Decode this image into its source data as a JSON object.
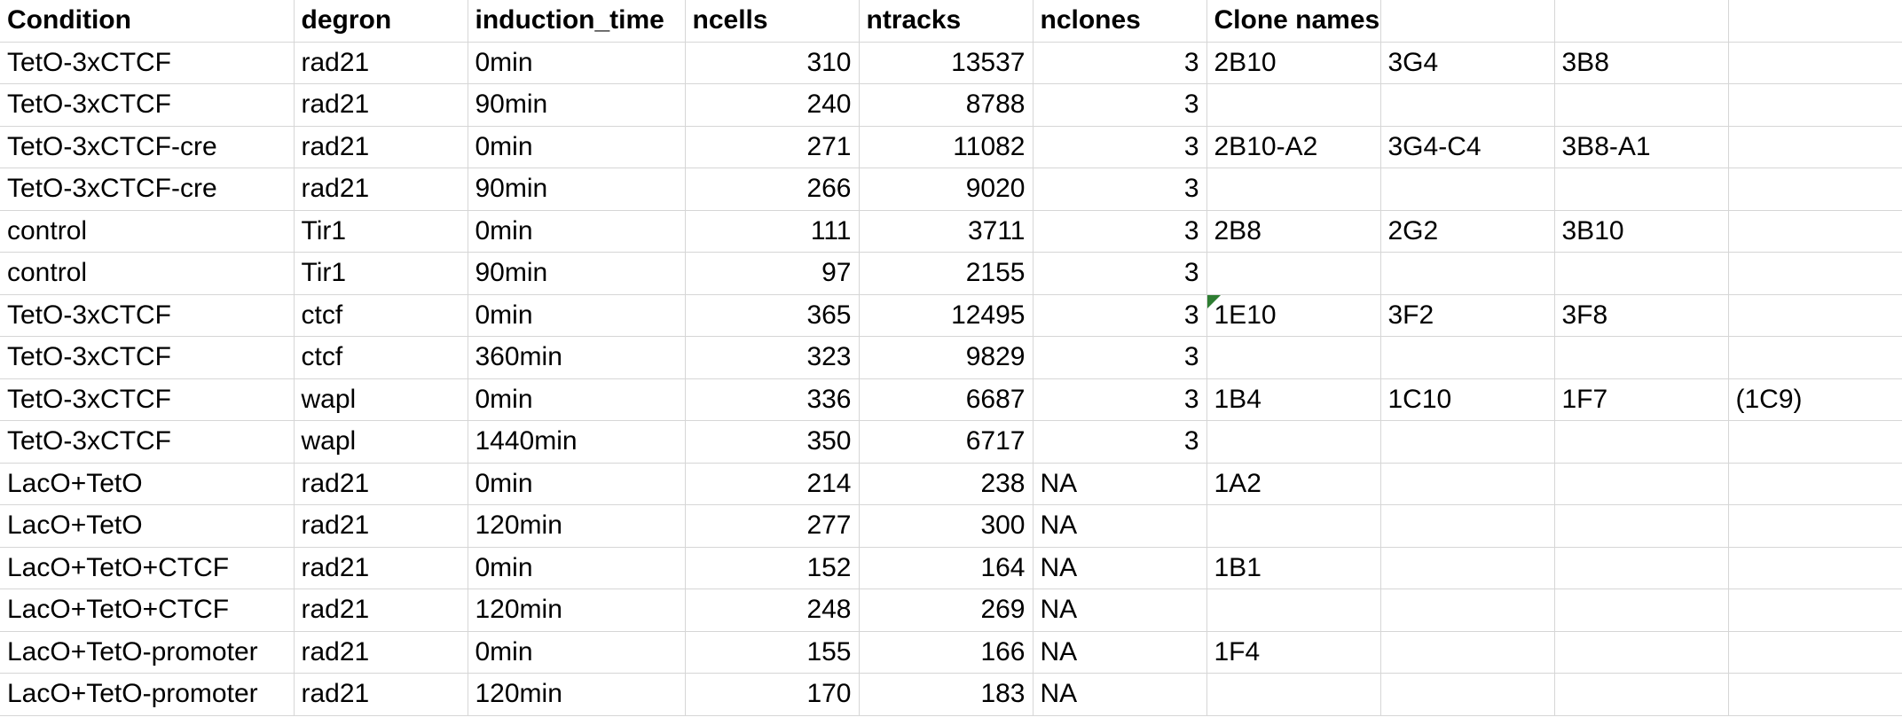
{
  "headers": [
    "Condition",
    "degron",
    "induction_time",
    "ncells",
    "ntracks",
    "nclones",
    "Clone names",
    "",
    "",
    ""
  ],
  "rows": [
    [
      "TetO-3xCTCF",
      "rad21",
      "0min",
      "310",
      "13537",
      "3",
      "2B10",
      "3G4",
      "3B8",
      ""
    ],
    [
      "TetO-3xCTCF",
      "rad21",
      "90min",
      "240",
      "8788",
      "3",
      "",
      "",
      "",
      ""
    ],
    [
      "TetO-3xCTCF-cre",
      "rad21",
      "0min",
      "271",
      "11082",
      "3",
      "2B10-A2",
      "3G4-C4",
      "3B8-A1",
      ""
    ],
    [
      "TetO-3xCTCF-cre",
      "rad21",
      "90min",
      "266",
      "9020",
      "3",
      "",
      "",
      "",
      ""
    ],
    [
      "control",
      "Tir1",
      "0min",
      "111",
      "3711",
      "3",
      "2B8",
      "2G2",
      "3B10",
      ""
    ],
    [
      "control",
      "Tir1",
      "90min",
      "97",
      "2155",
      "3",
      "",
      "",
      "",
      ""
    ],
    [
      "TetO-3xCTCF",
      "ctcf",
      "0min",
      "365",
      "12495",
      "3",
      "1E10",
      "3F2",
      "3F8",
      ""
    ],
    [
      "TetO-3xCTCF",
      "ctcf",
      "360min",
      "323",
      "9829",
      "3",
      "",
      "",
      "",
      ""
    ],
    [
      "TetO-3xCTCF",
      "wapl",
      "0min",
      "336",
      "6687",
      "3",
      "1B4",
      "1C10",
      "1F7",
      "(1C9)"
    ],
    [
      "TetO-3xCTCF",
      "wapl",
      "1440min",
      "350",
      "6717",
      "3",
      "",
      "",
      "",
      ""
    ],
    [
      "LacO+TetO",
      "rad21",
      "0min",
      "214",
      "238",
      "NA",
      "1A2",
      "",
      "",
      ""
    ],
    [
      "LacO+TetO",
      "rad21",
      "120min",
      "277",
      "300",
      "NA",
      "",
      "",
      "",
      ""
    ],
    [
      "LacO+TetO+CTCF",
      "rad21",
      "0min",
      "152",
      "164",
      "NA",
      "1B1",
      "",
      "",
      ""
    ],
    [
      "LacO+TetO+CTCF",
      "rad21",
      "120min",
      "248",
      "269",
      "NA",
      "",
      "",
      "",
      ""
    ],
    [
      "LacO+TetO-promoter",
      "rad21",
      "0min",
      "155",
      "166",
      "NA",
      "1F4",
      "",
      "",
      ""
    ],
    [
      "LacO+TetO-promoter",
      "rad21",
      "120min",
      "170",
      "183",
      "NA",
      "",
      "",
      "",
      ""
    ]
  ],
  "colors": {
    "gridline": "#d6d6d6",
    "selection_border": "#217346",
    "comment_marker": "#2e7d32"
  },
  "comment_indicator_icon": "comment-triangle-icon"
}
